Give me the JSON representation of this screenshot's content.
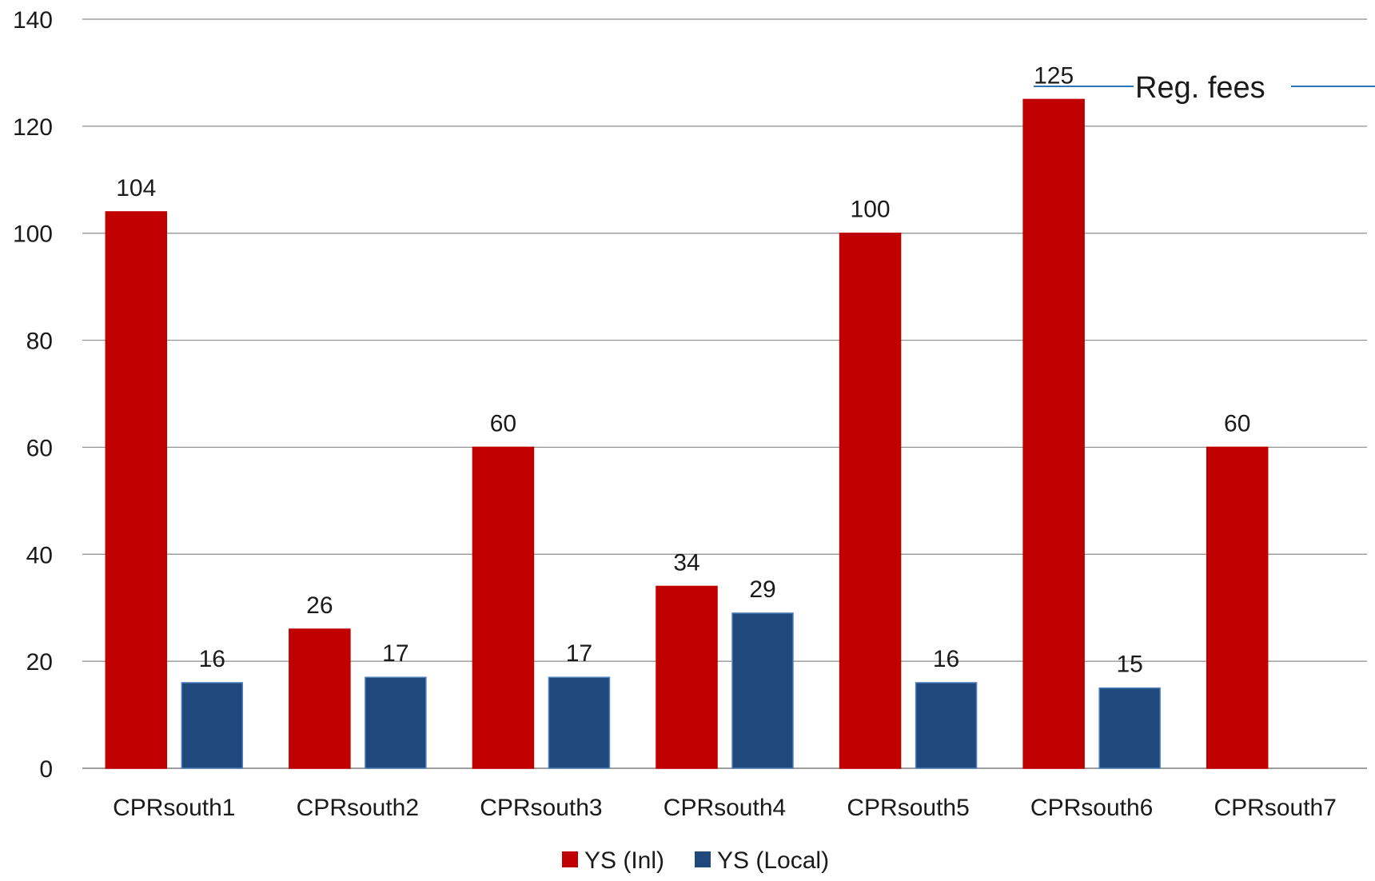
{
  "chart_data": {
    "type": "bar",
    "categories": [
      "CPRsouth1",
      "CPRsouth2",
      "CPRsouth3",
      "CPRsouth4",
      "CPRsouth5",
      "CPRsouth6",
      "CPRsouth7"
    ],
    "series": [
      {
        "name": "YS (Inl)",
        "color": "#c00000",
        "values": [
          104,
          26,
          60,
          34,
          100,
          125,
          60
        ]
      },
      {
        "name": "YS (Local)",
        "color": "#1f497d",
        "values": [
          16,
          17,
          17,
          29,
          16,
          15,
          null
        ]
      }
    ],
    "ylim": [
      0,
      140
    ],
    "yticks": [
      0,
      20,
      40,
      60,
      80,
      100,
      120,
      140
    ],
    "grid": true,
    "legend_position": "bottom-center",
    "annotations": [
      {
        "text": "Reg. fees",
        "color": "#2e75b6"
      }
    ]
  }
}
